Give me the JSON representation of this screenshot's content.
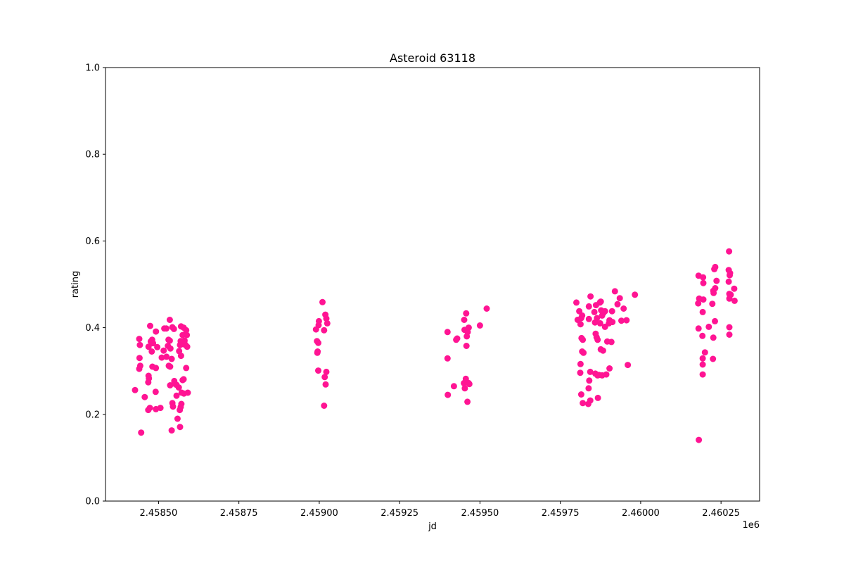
{
  "chart_data": {
    "type": "scatter",
    "title": "Asteroid 63118",
    "xlabel": "jd",
    "ylabel": "rating",
    "x_offset_label": "1e6",
    "xlim": [
      2458335,
      2460370
    ],
    "ylim": [
      0.0,
      1.0
    ],
    "x_ticks": [
      2458500,
      2458750,
      2459000,
      2459250,
      2459500,
      2459750,
      2460000,
      2460250
    ],
    "x_tick_labels": [
      "2.45850",
      "2.45875",
      "2.45900",
      "2.45925",
      "2.45950",
      "2.45975",
      "2.46000",
      "2.46025"
    ],
    "y_ticks": [
      0.0,
      0.2,
      0.4,
      0.6,
      0.8,
      1.0
    ],
    "y_tick_labels": [
      "0.0",
      "0.2",
      "0.4",
      "0.6",
      "0.8",
      "1.0"
    ],
    "grid": false,
    "marker_color": "#ff1493",
    "series": [
      {
        "points": [
          [
            2458427,
            0.256
          ],
          [
            2458440,
            0.374
          ],
          [
            2458441,
            0.33
          ],
          [
            2458442,
            0.36
          ],
          [
            2458440,
            0.305
          ],
          [
            2458443,
            0.312
          ],
          [
            2458446,
            0.158
          ],
          [
            2458457,
            0.24
          ],
          [
            2458468,
            0.21
          ],
          [
            2458473,
            0.215
          ],
          [
            2458468,
            0.274
          ],
          [
            2458469,
            0.289
          ],
          [
            2458470,
            0.283
          ],
          [
            2458469,
            0.356
          ],
          [
            2458474,
            0.404
          ],
          [
            2458476,
            0.368
          ],
          [
            2458480,
            0.372
          ],
          [
            2458483,
            0.364
          ],
          [
            2458479,
            0.345
          ],
          [
            2458481,
            0.31
          ],
          [
            2458492,
            0.391
          ],
          [
            2458496,
            0.355
          ],
          [
            2458492,
            0.307
          ],
          [
            2458491,
            0.252
          ],
          [
            2458492,
            0.212
          ],
          [
            2458506,
            0.215
          ],
          [
            2458510,
            0.331
          ],
          [
            2458516,
            0.347
          ],
          [
            2458518,
            0.398
          ],
          [
            2458524,
            0.398
          ],
          [
            2458525,
            0.333
          ],
          [
            2458529,
            0.358
          ],
          [
            2458531,
            0.372
          ],
          [
            2458535,
            0.418
          ],
          [
            2458535,
            0.37
          ],
          [
            2458537,
            0.352
          ],
          [
            2458532,
            0.312
          ],
          [
            2458536,
            0.31
          ],
          [
            2458536,
            0.267
          ],
          [
            2458541,
            0.328
          ],
          [
            2458543,
            0.401
          ],
          [
            2458548,
            0.397
          ],
          [
            2458541,
            0.163
          ],
          [
            2458543,
            0.226
          ],
          [
            2458545,
            0.218
          ],
          [
            2458549,
            0.271
          ],
          [
            2458549,
            0.277
          ],
          [
            2458556,
            0.268
          ],
          [
            2458556,
            0.243
          ],
          [
            2458559,
            0.19
          ],
          [
            2458563,
            0.262
          ],
          [
            2458564,
            0.346
          ],
          [
            2458567,
            0.36
          ],
          [
            2458569,
            0.369
          ],
          [
            2458570,
            0.403
          ],
          [
            2458570,
            0.335
          ],
          [
            2458575,
            0.383
          ],
          [
            2458573,
            0.364
          ],
          [
            2458577,
            0.362
          ],
          [
            2458578,
            0.4
          ],
          [
            2458581,
            0.37
          ],
          [
            2458584,
            0.36
          ],
          [
            2458586,
            0.394
          ],
          [
            2458588,
            0.383
          ],
          [
            2458589,
            0.356
          ],
          [
            2458586,
            0.307
          ],
          [
            2458591,
            0.25
          ],
          [
            2458579,
            0.248
          ],
          [
            2458578,
            0.281
          ],
          [
            2458575,
            0.279
          ],
          [
            2458571,
            0.224
          ],
          [
            2458569,
            0.217
          ],
          [
            2458566,
            0.21
          ],
          [
            2458567,
            0.171
          ],
          [
            2458572,
            0.25
          ]
        ]
      },
      {
        "points": [
          [
            2458990,
            0.396
          ],
          [
            2458993,
            0.369
          ],
          [
            2458994,
            0.342
          ],
          [
            2458995,
            0.345
          ],
          [
            2458997,
            0.365
          ],
          [
            2458997,
            0.301
          ],
          [
            2458998,
            0.406
          ],
          [
            2458999,
            0.415
          ],
          [
            2459010,
            0.459
          ],
          [
            2459015,
            0.394
          ],
          [
            2459019,
            0.43
          ],
          [
            2459022,
            0.421
          ],
          [
            2459025,
            0.41
          ],
          [
            2459017,
            0.286
          ],
          [
            2459022,
            0.298
          ],
          [
            2459020,
            0.269
          ],
          [
            2459015,
            0.22
          ]
        ]
      },
      {
        "points": [
          [
            2459399,
            0.39
          ],
          [
            2459399,
            0.329
          ],
          [
            2459400,
            0.245
          ],
          [
            2459419,
            0.265
          ],
          [
            2459426,
            0.372
          ],
          [
            2459429,
            0.375
          ],
          [
            2459451,
            0.418
          ],
          [
            2459452,
            0.395
          ],
          [
            2459457,
            0.433
          ],
          [
            2459458,
            0.358
          ],
          [
            2459459,
            0.38
          ],
          [
            2459462,
            0.39
          ],
          [
            2459465,
            0.4
          ],
          [
            2459450,
            0.272
          ],
          [
            2459453,
            0.26
          ],
          [
            2459456,
            0.282
          ],
          [
            2459458,
            0.275
          ],
          [
            2459461,
            0.229
          ],
          [
            2459465,
            0.272
          ],
          [
            2459467,
            0.27
          ],
          [
            2459500,
            0.405
          ],
          [
            2459521,
            0.444
          ]
        ]
      },
      {
        "points": [
          [
            2459800,
            0.458
          ],
          [
            2459804,
            0.418
          ],
          [
            2459809,
            0.438
          ],
          [
            2459813,
            0.408
          ],
          [
            2459815,
            0.422
          ],
          [
            2459818,
            0.428
          ],
          [
            2459816,
            0.376
          ],
          [
            2459818,
            0.345
          ],
          [
            2459820,
            0.372
          ],
          [
            2459822,
            0.342
          ],
          [
            2459813,
            0.316
          ],
          [
            2459812,
            0.296
          ],
          [
            2459815,
            0.246
          ],
          [
            2459820,
            0.226
          ],
          [
            2459839,
            0.449
          ],
          [
            2459844,
            0.472
          ],
          [
            2459839,
            0.42
          ],
          [
            2459843,
            0.298
          ],
          [
            2459840,
            0.278
          ],
          [
            2459838,
            0.26
          ],
          [
            2459843,
            0.232
          ],
          [
            2459837,
            0.224
          ],
          [
            2459856,
            0.436
          ],
          [
            2459861,
            0.452
          ],
          [
            2459858,
            0.412
          ],
          [
            2459864,
            0.422
          ],
          [
            2459860,
            0.386
          ],
          [
            2459863,
            0.378
          ],
          [
            2459866,
            0.372
          ],
          [
            2459859,
            0.294
          ],
          [
            2459866,
            0.29
          ],
          [
            2459870,
            0.291
          ],
          [
            2459867,
            0.238
          ],
          [
            2459873,
            0.458
          ],
          [
            2459876,
            0.46
          ],
          [
            2459877,
            0.44
          ],
          [
            2459880,
            0.428
          ],
          [
            2459884,
            0.434
          ],
          [
            2459889,
            0.438
          ],
          [
            2459874,
            0.41
          ],
          [
            2459876,
            0.35
          ],
          [
            2459883,
            0.347
          ],
          [
            2459889,
            0.402
          ],
          [
            2459880,
            0.29
          ],
          [
            2459893,
            0.292
          ],
          [
            2459896,
            0.368
          ],
          [
            2459901,
            0.41
          ],
          [
            2459903,
            0.417
          ],
          [
            2459911,
            0.438
          ],
          [
            2459912,
            0.413
          ],
          [
            2459909,
            0.367
          ],
          [
            2459903,
            0.306
          ],
          [
            2459920,
            0.484
          ],
          [
            2459928,
            0.454
          ],
          [
            2459935,
            0.468
          ],
          [
            2459947,
            0.444
          ],
          [
            2459940,
            0.416
          ],
          [
            2459960,
            0.314
          ],
          [
            2459982,
            0.476
          ],
          [
            2459956,
            0.417
          ]
        ]
      },
      {
        "points": [
          [
            2460180,
            0.52
          ],
          [
            2460194,
            0.516
          ],
          [
            2460195,
            0.503
          ],
          [
            2460182,
            0.467
          ],
          [
            2460179,
            0.456
          ],
          [
            2460195,
            0.465
          ],
          [
            2460193,
            0.436
          ],
          [
            2460180,
            0.398
          ],
          [
            2460192,
            0.381
          ],
          [
            2460200,
            0.343
          ],
          [
            2460193,
            0.329
          ],
          [
            2460193,
            0.315
          ],
          [
            2460193,
            0.292
          ],
          [
            2460181,
            0.141
          ],
          [
            2460212,
            0.402
          ],
          [
            2460223,
            0.455
          ],
          [
            2460227,
            0.48
          ],
          [
            2460226,
            0.485
          ],
          [
            2460229,
            0.535
          ],
          [
            2460232,
            0.54
          ],
          [
            2460236,
            0.508
          ],
          [
            2460232,
            0.491
          ],
          [
            2460231,
            0.415
          ],
          [
            2460226,
            0.377
          ],
          [
            2460225,
            0.328
          ],
          [
            2460275,
            0.576
          ],
          [
            2460274,
            0.533
          ],
          [
            2460278,
            0.526
          ],
          [
            2460277,
            0.521
          ],
          [
            2460274,
            0.506
          ],
          [
            2460276,
            0.478
          ],
          [
            2460276,
            0.467
          ],
          [
            2460280,
            0.476
          ],
          [
            2460291,
            0.49
          ],
          [
            2460292,
            0.462
          ],
          [
            2460276,
            0.401
          ],
          [
            2460276,
            0.384
          ]
        ]
      }
    ]
  }
}
